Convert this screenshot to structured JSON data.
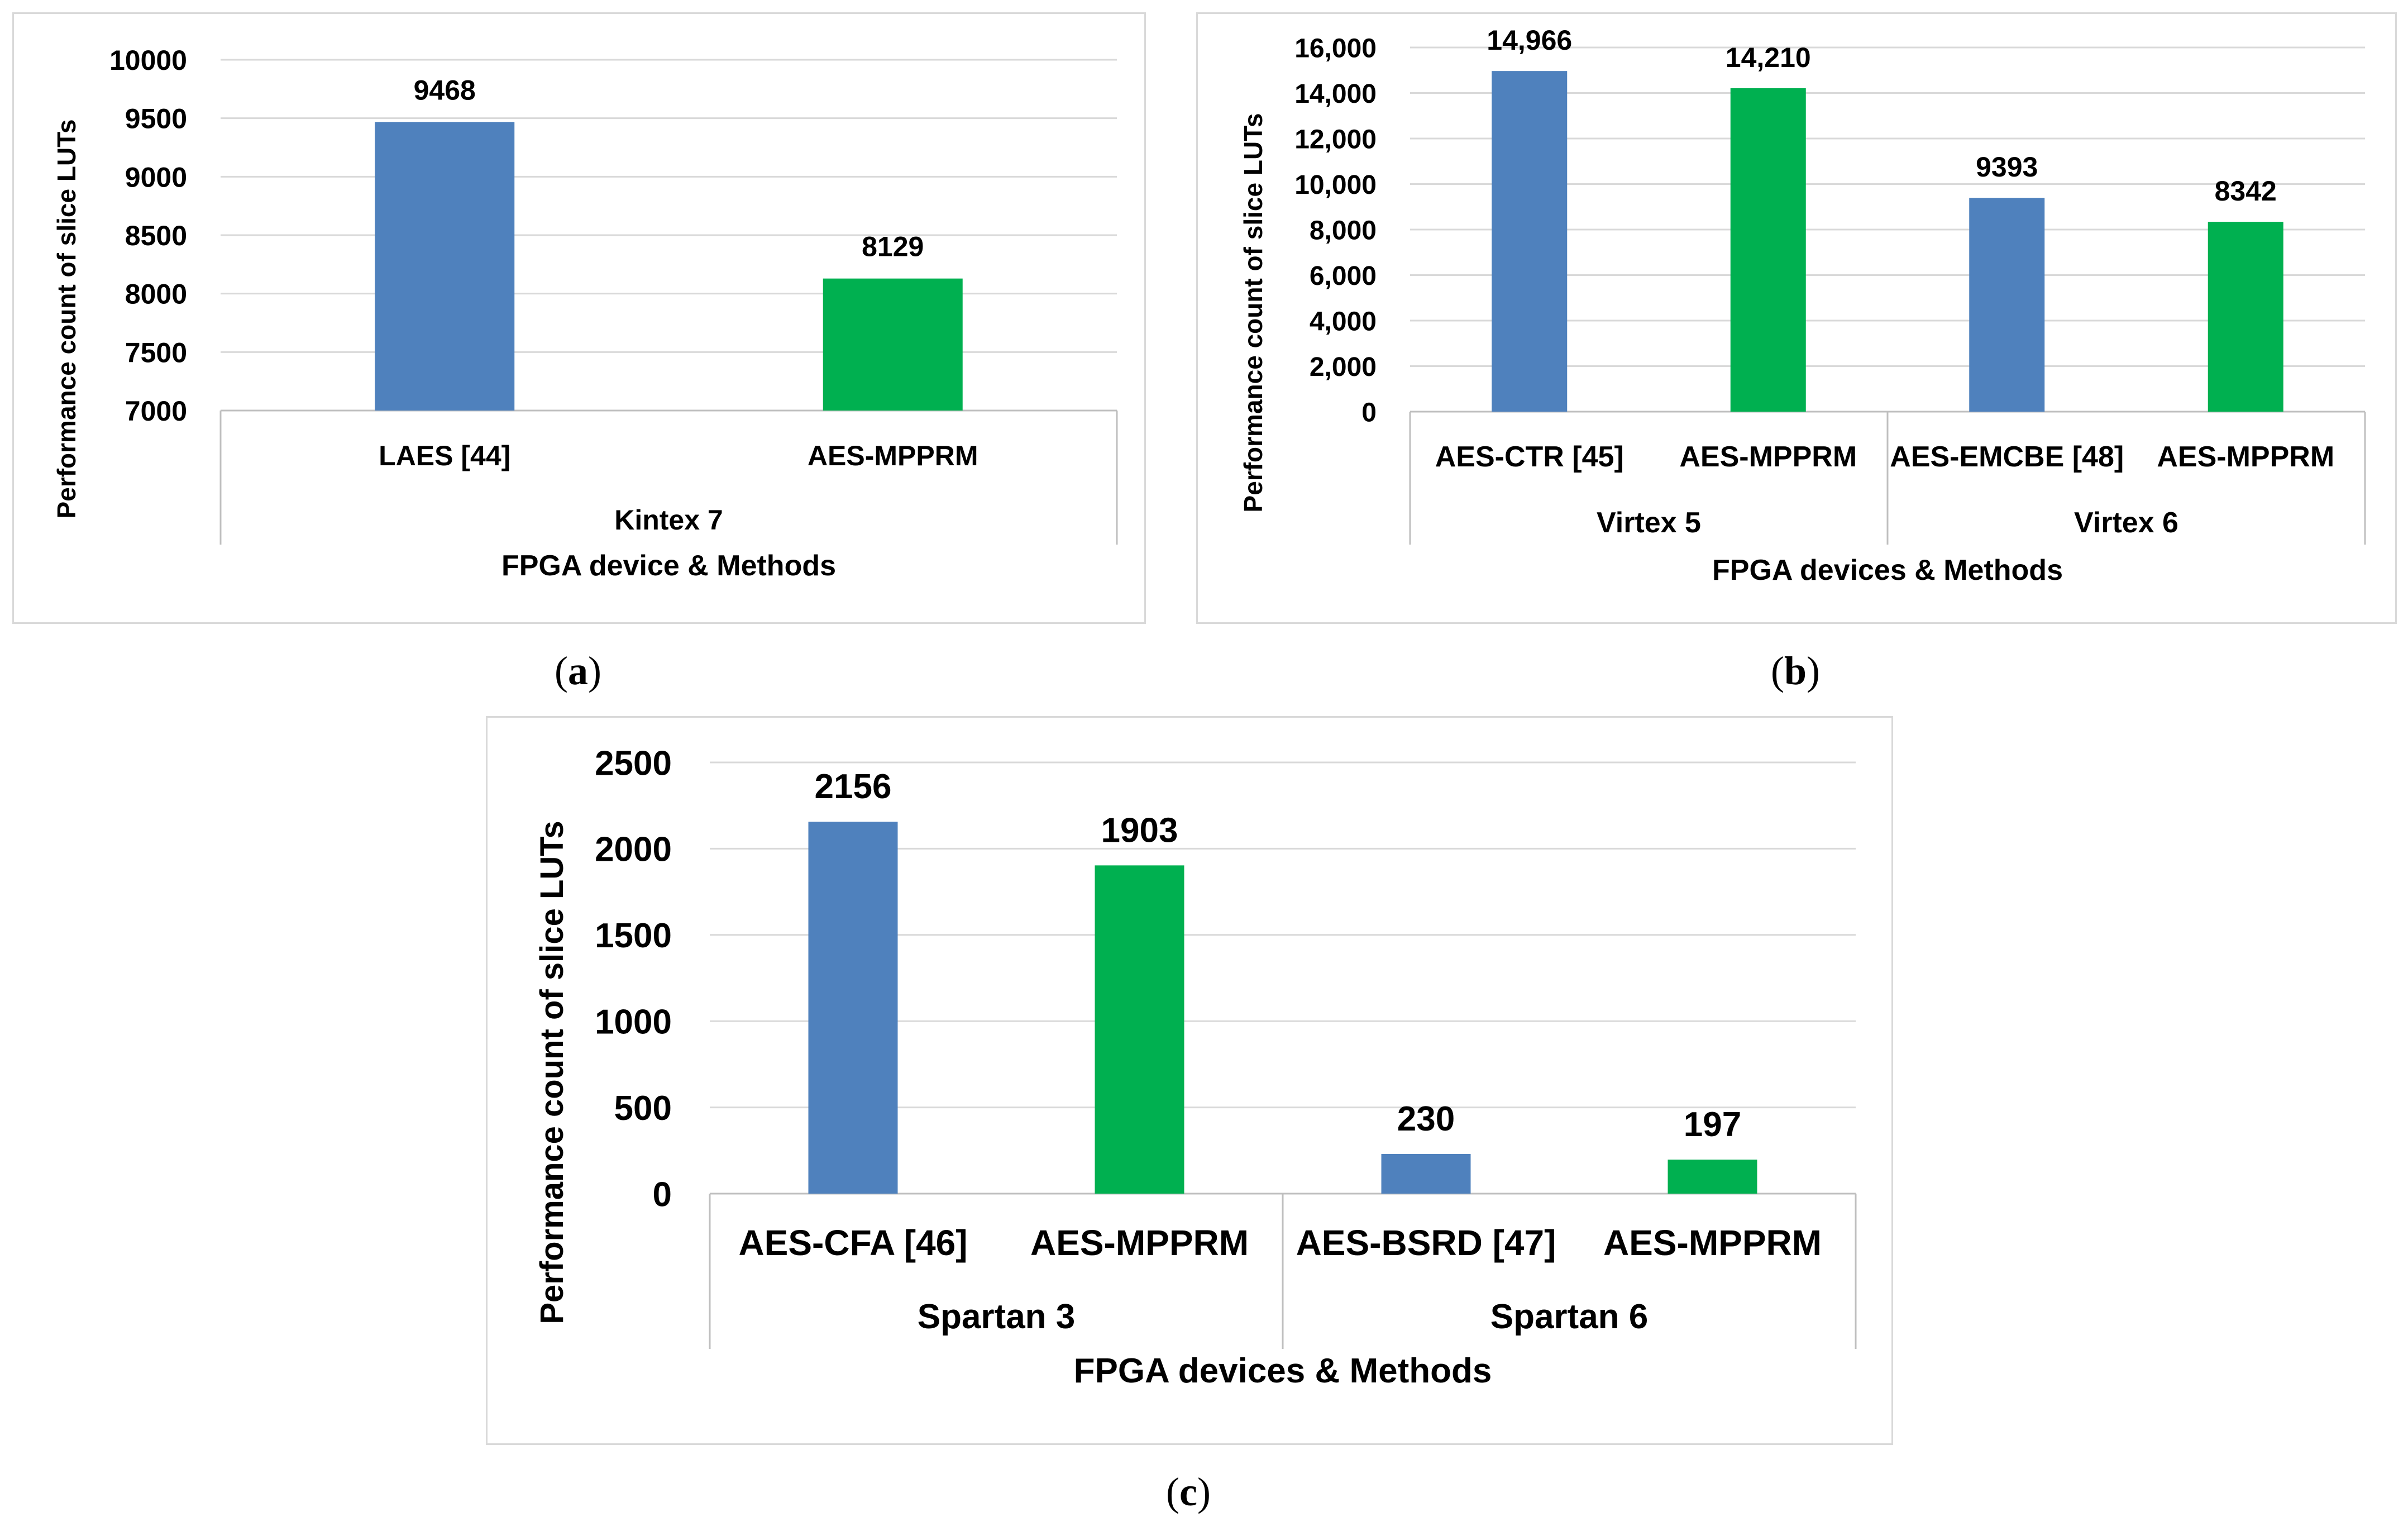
{
  "colors": {
    "blue": "#4f81bd",
    "green": "#00b050"
  },
  "captions": {
    "a": "a",
    "b": "b",
    "c": "c"
  },
  "chart_data": [
    {
      "id": "a",
      "type": "bar",
      "ylabel": "Performance count of slice LUTs",
      "xlabel": "FPGA device & Methods",
      "ylim": [
        7000,
        10000
      ],
      "yticks": [
        "7000",
        "7500",
        "8000",
        "8500",
        "9000",
        "9500",
        "10000"
      ],
      "grid": true,
      "groups": [
        {
          "name": "Kintex 7",
          "bars": [
            {
              "label": "LAES [44]",
              "value": 9468,
              "value_label": "9468",
              "color": "blue"
            },
            {
              "label": "AES-MPPRM",
              "value": 8129,
              "value_label": "8129",
              "color": "green"
            }
          ]
        }
      ]
    },
    {
      "id": "b",
      "type": "bar",
      "ylabel": "Performance count of slice LUTs",
      "xlabel": "FPGA devices & Methods",
      "ylim": [
        0,
        16000
      ],
      "yticks": [
        "0",
        "2,000",
        "4,000",
        "6,000",
        "8,000",
        "10,000",
        "12,000",
        "14,000",
        "16,000"
      ],
      "grid": true,
      "groups": [
        {
          "name": "Virtex 5",
          "bars": [
            {
              "label": "AES-CTR [45]",
              "value": 14966,
              "value_label": "14,966",
              "color": "blue"
            },
            {
              "label": "AES-MPPRM",
              "value": 14210,
              "value_label": "14,210",
              "color": "green"
            }
          ]
        },
        {
          "name": "Virtex 6",
          "bars": [
            {
              "label": "AES-EMCBE [48]",
              "value": 9393,
              "value_label": "9393",
              "color": "blue"
            },
            {
              "label": "AES-MPPRM",
              "value": 8342,
              "value_label": "8342",
              "color": "green"
            }
          ]
        }
      ]
    },
    {
      "id": "c",
      "type": "bar",
      "ylabel": "Performance count of slice LUTs",
      "xlabel": "FPGA devices & Methods",
      "ylim": [
        0,
        2500
      ],
      "yticks": [
        "0",
        "500",
        "1000",
        "1500",
        "2000",
        "2500"
      ],
      "grid": true,
      "groups": [
        {
          "name": "Spartan 3",
          "bars": [
            {
              "label": "AES-CFA [46]",
              "value": 2156,
              "value_label": "2156",
              "color": "blue"
            },
            {
              "label": "AES-MPPRM",
              "value": 1903,
              "value_label": "1903",
              "color": "green"
            }
          ]
        },
        {
          "name": "Spartan 6",
          "bars": [
            {
              "label": "AES-BSRD [47]",
              "value": 230,
              "value_label": "230",
              "color": "blue"
            },
            {
              "label": "AES-MPPRM",
              "value": 197,
              "value_label": "197",
              "color": "green"
            }
          ]
        }
      ]
    }
  ]
}
